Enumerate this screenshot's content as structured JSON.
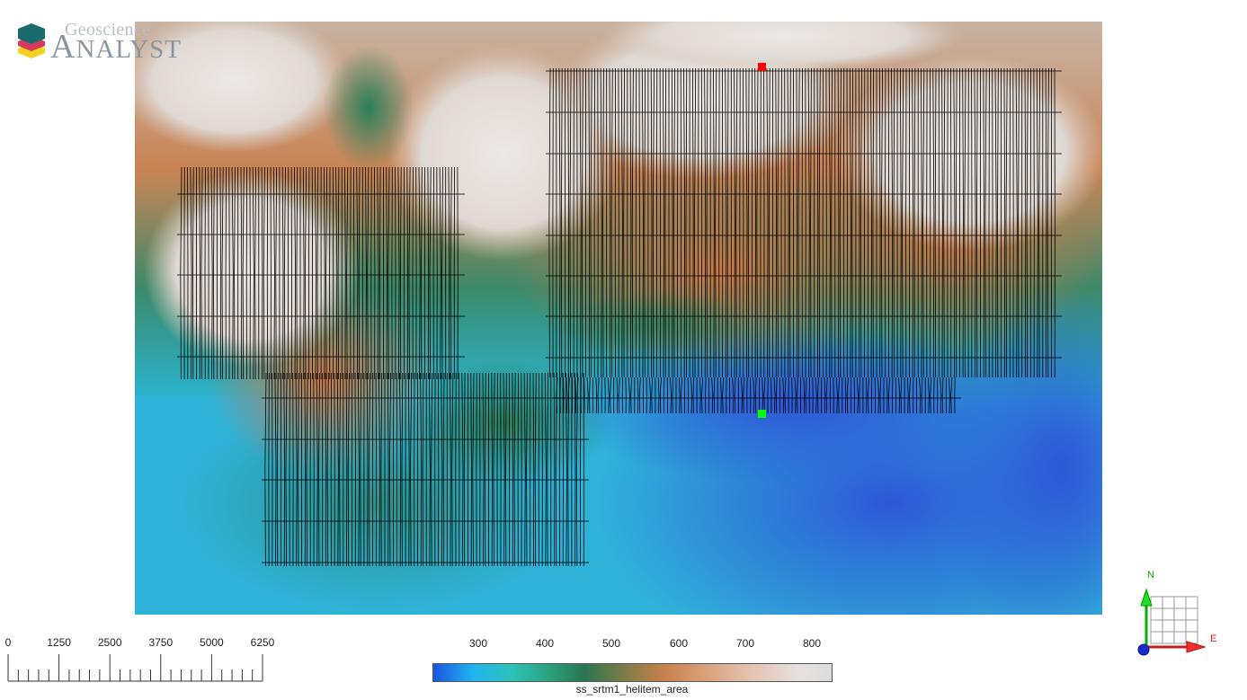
{
  "logo": {
    "line1": "Geoscience",
    "line2_cap": "A",
    "line2_rest": "NALYST"
  },
  "map": {
    "markers": [
      {
        "name": "start-marker",
        "color": "#ff0000"
      },
      {
        "name": "end-marker",
        "color": "#00ff00"
      }
    ]
  },
  "scale_bar": {
    "labels": [
      "0",
      "1250",
      "2500",
      "3750",
      "5000",
      "6250"
    ]
  },
  "colorbar": {
    "title": "ss_srtm1_helitem_area",
    "ticks": [
      "300",
      "400",
      "500",
      "600",
      "700",
      "800"
    ]
  },
  "compass": {
    "north": "N",
    "east": "E",
    "north_color": "#00cc00",
    "east_color": "#e02020"
  }
}
